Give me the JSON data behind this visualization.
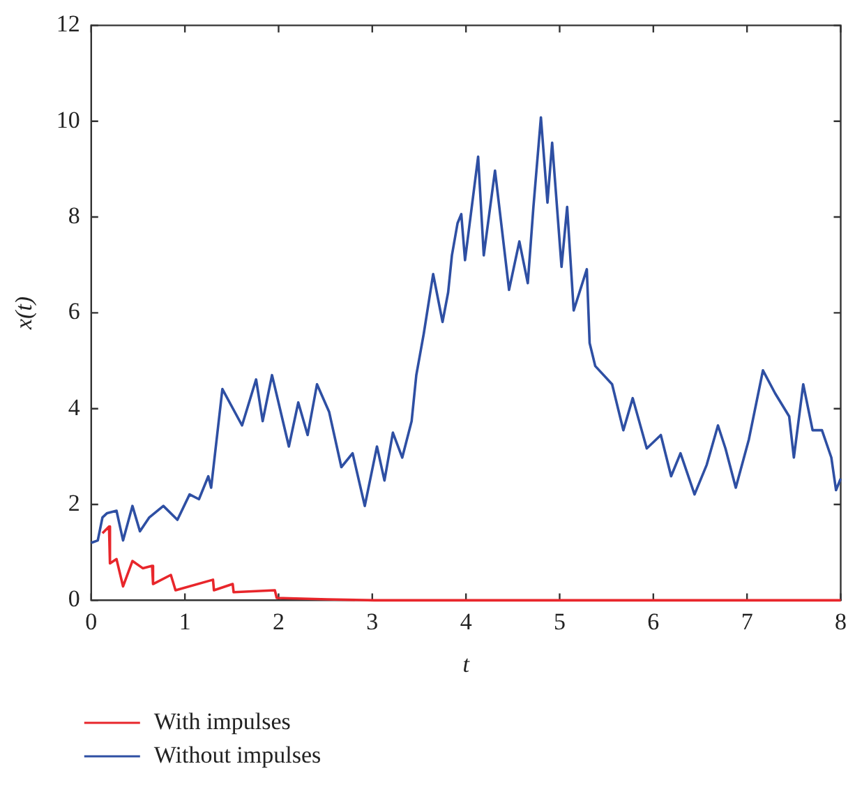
{
  "chart_data": {
    "type": "line",
    "xlabel": "t",
    "ylabel": "x(t)",
    "xlim": [
      0,
      8
    ],
    "xticks": [
      0,
      1,
      2,
      3,
      4,
      5,
      6,
      7,
      8
    ],
    "ylim": [
      0,
      12
    ],
    "yticks": [
      0,
      2,
      4,
      6,
      8,
      10,
      12
    ],
    "grid": false,
    "legend": "bottom left",
    "marker": "none",
    "line_style": "solid",
    "series": [
      {
        "name": "With impulses",
        "color": "#e8262b",
        "x": [
          0.12,
          0.19,
          0.2,
          0.27,
          0.34,
          0.44,
          0.55,
          0.65,
          0.66,
          0.85,
          0.9,
          1.3,
          1.31,
          1.51,
          1.52,
          1.96,
          1.98,
          2.52,
          3.02,
          8
        ],
        "values": [
          1.4,
          1.54,
          0.77,
          0.86,
          0.29,
          0.82,
          0.67,
          0.72,
          0.34,
          0.53,
          0.21,
          0.43,
          0.21,
          0.34,
          0.17,
          0.21,
          0.05,
          0.02,
          0,
          0
        ]
      },
      {
        "name": "Without impulses",
        "color": "#2e4fa3",
        "x": [
          0,
          0.07,
          0.12,
          0.17,
          0.27,
          0.34,
          0.44,
          0.52,
          0.62,
          0.77,
          0.92,
          1.05,
          1.15,
          1.25,
          1.28,
          1.35,
          1.4,
          1.61,
          1.76,
          1.83,
          1.93,
          2.11,
          2.21,
          2.31,
          2.41,
          2.54,
          2.67,
          2.79,
          2.92,
          3.05,
          3.13,
          3.22,
          3.32,
          3.42,
          3.47,
          3.55,
          3.65,
          3.75,
          3.81,
          3.85,
          3.91,
          3.95,
          3.99,
          4.13,
          4.19,
          4.31,
          4.46,
          4.57,
          4.66,
          4.72,
          4.8,
          4.87,
          4.92,
          5.02,
          5.08,
          5.15,
          5.29,
          5.32,
          5.38,
          5.56,
          5.68,
          5.78,
          5.93,
          6.08,
          6.19,
          6.29,
          6.44,
          6.57,
          6.69,
          6.77,
          6.88,
          7.02,
          7.17,
          7.3,
          7.45,
          7.5,
          7.6,
          7.7,
          7.8,
          7.9,
          7.95,
          8
        ],
        "values": [
          1.2,
          1.25,
          1.73,
          1.82,
          1.87,
          1.25,
          1.97,
          1.44,
          1.73,
          1.97,
          1.68,
          2.21,
          2.11,
          2.59,
          2.35,
          3.55,
          4.41,
          3.65,
          4.61,
          3.74,
          4.7,
          3.21,
          4.13,
          3.45,
          4.51,
          3.93,
          2.78,
          3.07,
          1.97,
          3.21,
          2.5,
          3.5,
          2.98,
          3.74,
          4.7,
          5.57,
          6.81,
          5.81,
          6.43,
          7.2,
          7.87,
          8.06,
          7.1,
          9.26,
          7.2,
          8.97,
          6.48,
          7.49,
          6.62,
          8.21,
          10.08,
          8.3,
          9.55,
          6.96,
          8.21,
          6.05,
          6.91,
          5.37,
          4.89,
          4.51,
          3.55,
          4.22,
          3.17,
          3.45,
          2.59,
          3.07,
          2.21,
          2.83,
          3.65,
          3.17,
          2.35,
          3.36,
          4.8,
          4.32,
          3.84,
          2.98,
          4.51,
          3.55,
          3.55,
          2.98,
          2.3,
          2.54
        ]
      }
    ]
  }
}
